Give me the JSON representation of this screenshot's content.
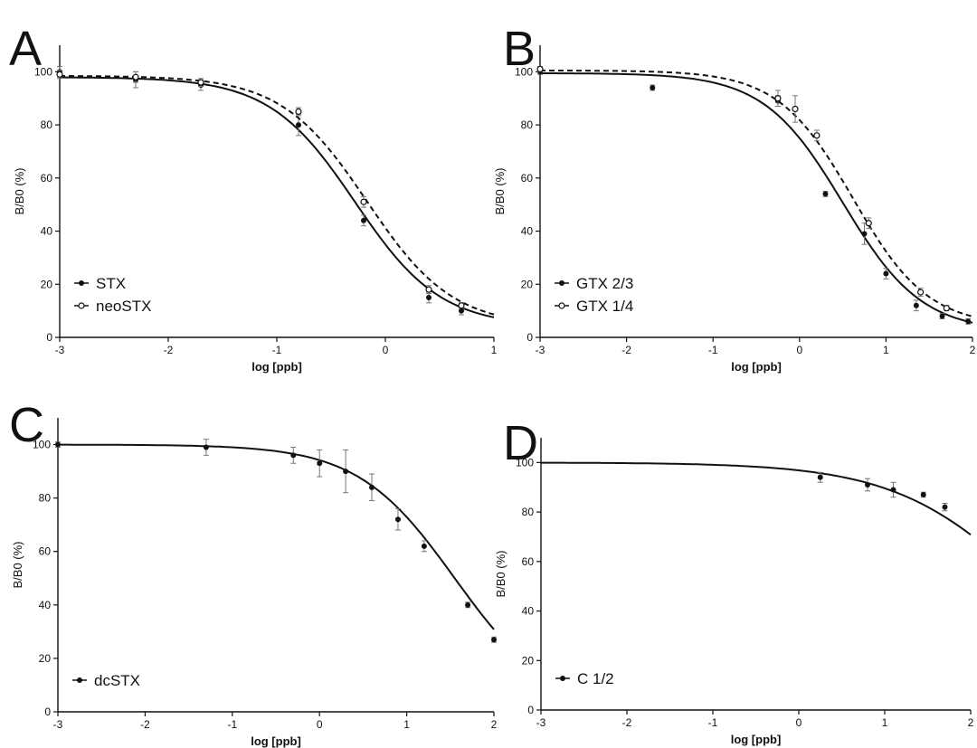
{
  "chart_data": [
    {
      "panel": "A",
      "type": "scatter",
      "xlabel": "log [ppb]",
      "ylabel": "B/B0 (%)",
      "xlim": [
        -3,
        1
      ],
      "ylim": [
        0,
        100
      ],
      "xticks": [
        -3,
        -2,
        -1,
        0,
        1
      ],
      "yticks": [
        0,
        20,
        40,
        60,
        80,
        100
      ],
      "legend_position": "bottom-left",
      "series": [
        {
          "name": "STX",
          "marker": "filled",
          "line": "solid",
          "points": [
            {
              "x": -3.0,
              "y": 100,
              "err": 2
            },
            {
              "x": -2.3,
              "y": 97,
              "err": 3
            },
            {
              "x": -1.7,
              "y": 95,
              "err": 2
            },
            {
              "x": -0.8,
              "y": 80,
              "err": 4
            },
            {
              "x": -0.2,
              "y": 44,
              "err": 2
            },
            {
              "x": 0.4,
              "y": 15,
              "err": 2
            },
            {
              "x": 0.7,
              "y": 10,
              "err": 1.5
            }
          ],
          "fit": {
            "top": 98,
            "bottom": 4,
            "logec50": -0.28,
            "hill": 1.1
          }
        },
        {
          "name": "neoSTX",
          "marker": "open",
          "line": "dashed",
          "points": [
            {
              "x": -3.0,
              "y": 99,
              "err": 1.5
            },
            {
              "x": -2.3,
              "y": 98,
              "err": 2
            },
            {
              "x": -1.7,
              "y": 96,
              "err": 1.5
            },
            {
              "x": -0.8,
              "y": 85,
              "err": 1.5
            },
            {
              "x": -0.2,
              "y": 51,
              "err": 2
            },
            {
              "x": 0.4,
              "y": 18,
              "err": 1.5
            },
            {
              "x": 0.7,
              "y": 12,
              "err": 1
            }
          ],
          "fit": {
            "top": 98.5,
            "bottom": 4,
            "logec50": -0.17,
            "hill": 1.1
          }
        }
      ]
    },
    {
      "panel": "B",
      "type": "scatter",
      "xlabel": "log [ppb]",
      "ylabel": "B/B0 (%)",
      "xlim": [
        -3,
        2
      ],
      "ylim": [
        0,
        100
      ],
      "xticks": [
        -3,
        -2,
        -1,
        0,
        1,
        2
      ],
      "yticks": [
        0,
        20,
        40,
        60,
        80,
        100
      ],
      "legend_position": "bottom-left",
      "series": [
        {
          "name": "GTX 2/3",
          "marker": "filled",
          "line": "solid",
          "points": [
            {
              "x": -3.0,
              "y": 100,
              "err": 1
            },
            {
              "x": -1.7,
              "y": 94,
              "err": 1
            },
            {
              "x": -0.25,
              "y": 89,
              "err": 2
            },
            {
              "x": 0.3,
              "y": 54,
              "err": 1
            },
            {
              "x": 0.75,
              "y": 39,
              "err": 4
            },
            {
              "x": 1.0,
              "y": 24,
              "err": 2
            },
            {
              "x": 1.35,
              "y": 12,
              "err": 2
            },
            {
              "x": 1.65,
              "y": 8,
              "err": 1
            },
            {
              "x": 1.95,
              "y": 6,
              "err": 1
            }
          ],
          "fit": {
            "top": 99.5,
            "bottom": 2,
            "logec50": 0.5,
            "hill": 0.95
          }
        },
        {
          "name": "GTX 1/4",
          "marker": "open",
          "line": "dashed",
          "points": [
            {
              "x": -3.0,
              "y": 101,
              "err": 1
            },
            {
              "x": -0.25,
              "y": 90,
              "err": 3
            },
            {
              "x": -0.05,
              "y": 86,
              "err": 5
            },
            {
              "x": 0.2,
              "y": 76,
              "err": 2
            },
            {
              "x": 0.8,
              "y": 43,
              "err": 2
            },
            {
              "x": 1.4,
              "y": 17,
              "err": 1.5
            },
            {
              "x": 1.7,
              "y": 11,
              "err": 1
            }
          ],
          "fit": {
            "top": 100.5,
            "bottom": 4,
            "logec50": 0.62,
            "hill": 1.0
          }
        }
      ]
    },
    {
      "panel": "C",
      "type": "scatter",
      "xlabel": "log [ppb]",
      "ylabel": "B/B0 (%)",
      "xlim": [
        -3,
        2
      ],
      "ylim": [
        0,
        100
      ],
      "xticks": [
        -3,
        -2,
        -1,
        0,
        1,
        2
      ],
      "yticks": [
        0,
        20,
        40,
        60,
        80,
        100
      ],
      "legend_position": "bottom-left",
      "series": [
        {
          "name": "dcSTX",
          "marker": "filled",
          "line": "solid",
          "points": [
            {
              "x": -3.0,
              "y": 100,
              "err": 1
            },
            {
              "x": -1.3,
              "y": 99,
              "err": 3
            },
            {
              "x": -0.3,
              "y": 96,
              "err": 3
            },
            {
              "x": 0.0,
              "y": 93,
              "err": 5
            },
            {
              "x": 0.3,
              "y": 90,
              "err": 8
            },
            {
              "x": 0.6,
              "y": 84,
              "err": 5
            },
            {
              "x": 0.9,
              "y": 72,
              "err": 4
            },
            {
              "x": 1.2,
              "y": 62,
              "err": 2
            },
            {
              "x": 1.7,
              "y": 40,
              "err": 1
            },
            {
              "x": 2.0,
              "y": 27,
              "err": 1
            }
          ],
          "fit": {
            "top": 100,
            "bottom": 0,
            "logec50": 1.55,
            "hill": 0.78
          }
        }
      ]
    },
    {
      "panel": "D",
      "type": "scatter",
      "xlabel": "log [ppb]",
      "ylabel": "B/B0 (%)",
      "xlim": [
        -3,
        2
      ],
      "ylim": [
        0,
        100
      ],
      "xticks": [
        -3,
        -2,
        -1,
        0,
        1,
        2
      ],
      "yticks": [
        0,
        20,
        40,
        60,
        80,
        100
      ],
      "legend_position": "bottom-left",
      "series": [
        {
          "name": "C 1/2",
          "marker": "filled",
          "line": "solid",
          "points": [
            {
              "x": 0.25,
              "y": 94,
              "err": 2
            },
            {
              "x": 0.8,
              "y": 91,
              "err": 2.5
            },
            {
              "x": 1.1,
              "y": 89,
              "err": 3
            },
            {
              "x": 1.45,
              "y": 87,
              "err": 1
            },
            {
              "x": 1.7,
              "y": 82,
              "err": 1.5
            }
          ],
          "fit": {
            "top": 100,
            "bottom": 0,
            "logec50": 2.7,
            "hill": 0.55
          }
        }
      ]
    }
  ]
}
